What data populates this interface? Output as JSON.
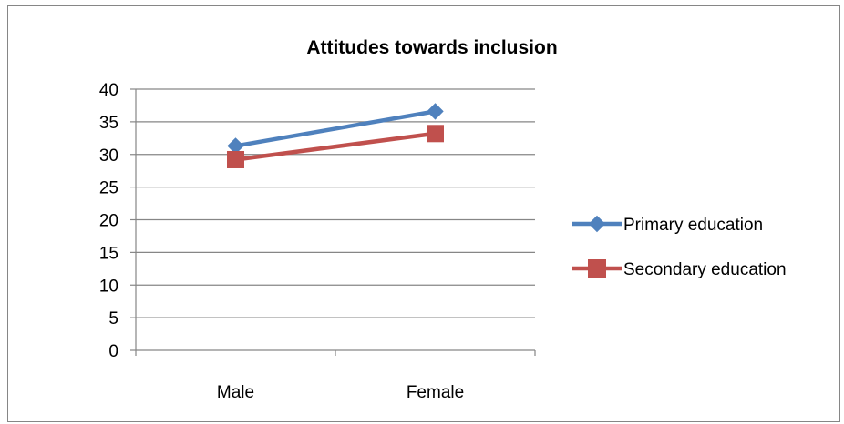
{
  "chart_data": {
    "type": "line",
    "title": "Attitudes towards inclusion",
    "categories": [
      "Male",
      "Female"
    ],
    "ylim": [
      0,
      40
    ],
    "yticks": [
      0,
      5,
      10,
      15,
      20,
      25,
      30,
      35,
      40
    ],
    "grid": true,
    "legend": "right",
    "series": [
      {
        "name": "Primary education",
        "values": [
          31.3,
          36.6
        ],
        "color": "#4F81BD",
        "marker": "diamond"
      },
      {
        "name": "Secondary education",
        "values": [
          29.2,
          33.2
        ],
        "color": "#C0504D",
        "marker": "square"
      }
    ]
  }
}
